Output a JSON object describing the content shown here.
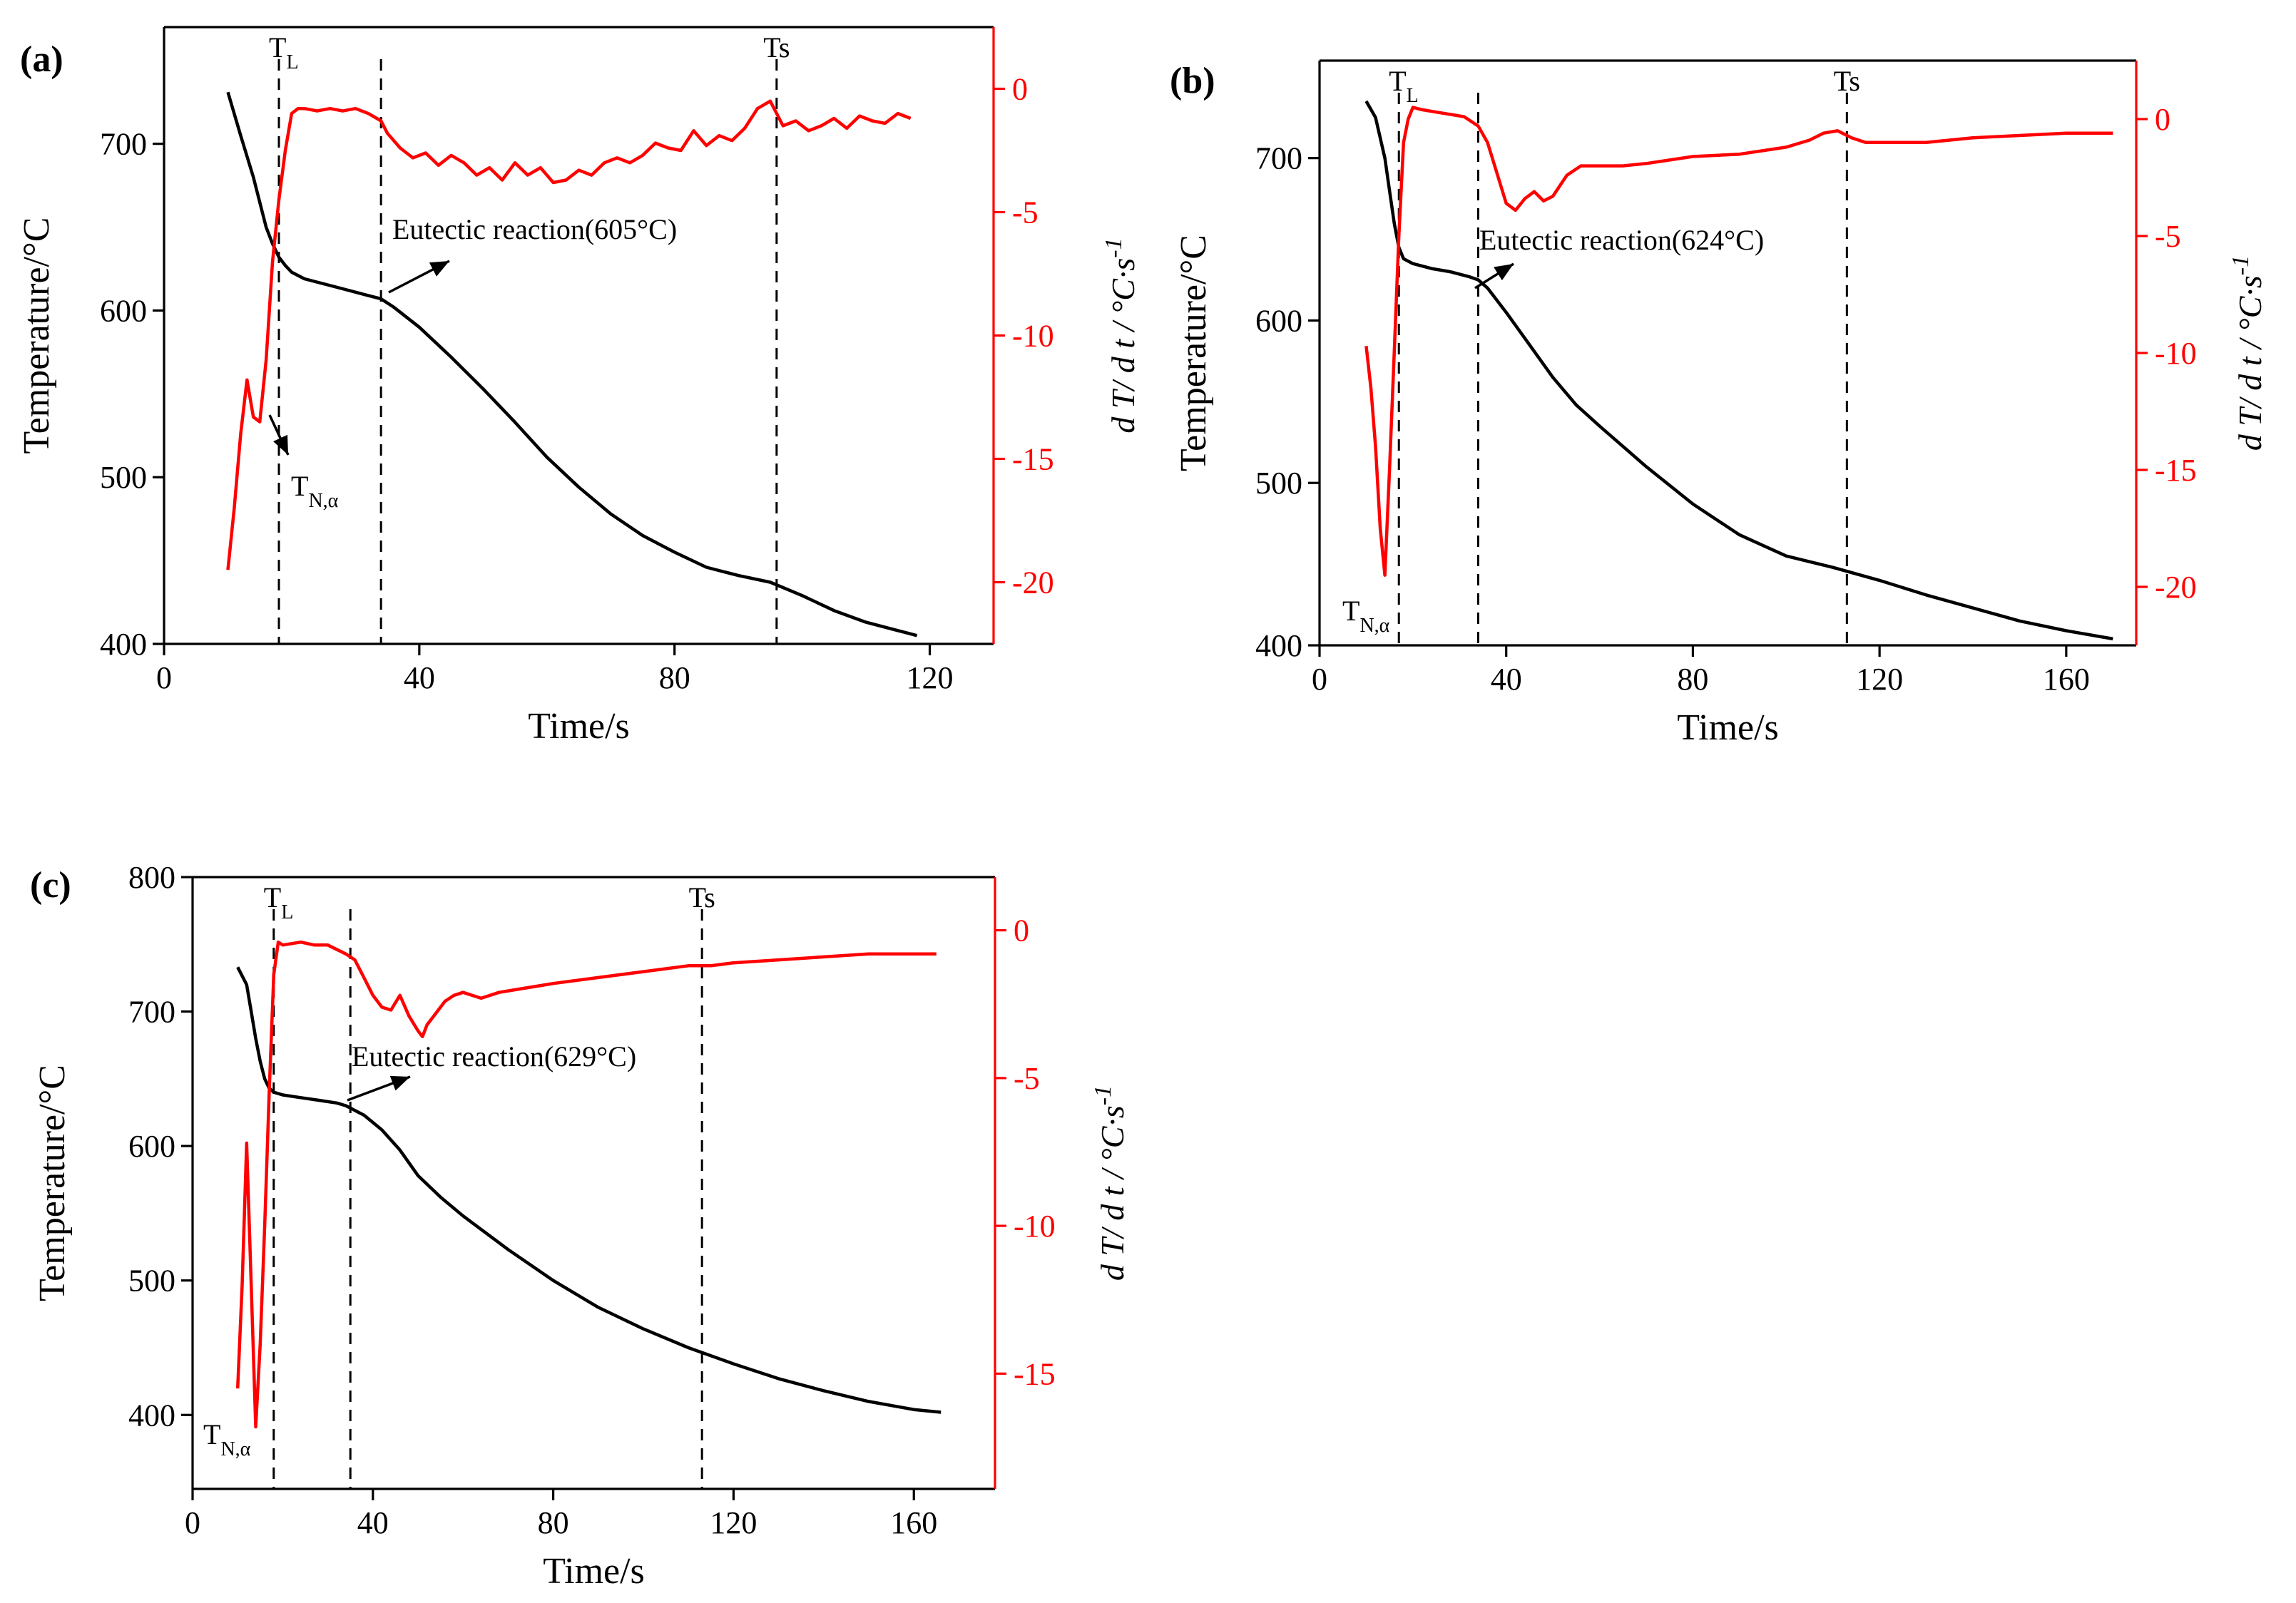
{
  "chart_data": [
    {
      "type": "line",
      "panel_label": "(a)",
      "xlabel": "Time/s",
      "ylabel_left": "Temperature/°C",
      "ylabel_right": "d T/ d t / °C·s",
      "ylabel_right_superscript": "-1",
      "xlim": [
        0,
        130
      ],
      "xticks": [
        0,
        40,
        80,
        120
      ],
      "ylim_left": [
        400,
        770
      ],
      "yticks_left": [
        400,
        500,
        600,
        700
      ],
      "ylim_right": [
        -22.5,
        2.5
      ],
      "yticks_right": [
        0,
        -5,
        -10,
        -15,
        -20
      ],
      "markers": [
        {
          "name": "T",
          "sub": "L",
          "x": 18
        },
        {
          "name": "",
          "sub": "",
          "x": 34
        },
        {
          "name": "Ts",
          "sub": "",
          "x": 96
        }
      ],
      "nucleation_label": {
        "name": "T",
        "sub": "N,α"
      },
      "eutectic_label": "Eutectic reaction(605°C)",
      "series": [
        {
          "name": "Temperature",
          "axis": "left",
          "color": "#000000",
          "x": [
            10,
            12,
            14,
            16,
            17,
            18,
            19,
            20,
            22,
            25,
            28,
            31,
            34,
            36,
            40,
            45,
            50,
            55,
            60,
            65,
            70,
            75,
            80,
            85,
            90,
            95,
            100,
            105,
            110,
            115,
            118
          ],
          "y": [
            731,
            705,
            680,
            650,
            640,
            632,
            627,
            623,
            619,
            616,
            613,
            610,
            607,
            602,
            590,
            572,
            553,
            533,
            512,
            494,
            478,
            465,
            455,
            446,
            441,
            437,
            429,
            420,
            413,
            408,
            405
          ]
        },
        {
          "name": "dT/dt",
          "axis": "right",
          "color": "#ff0000",
          "x": [
            10,
            11,
            12,
            13,
            14,
            15,
            16,
            17,
            18,
            19,
            20,
            21,
            22,
            24,
            26,
            28,
            30,
            32,
            34,
            35,
            37,
            39,
            41,
            43,
            45,
            47,
            49,
            51,
            53,
            55,
            57,
            59,
            61,
            63,
            65,
            67,
            69,
            71,
            73,
            75,
            77,
            79,
            81,
            83,
            85,
            87,
            89,
            91,
            93,
            95,
            97,
            99,
            101,
            103,
            105,
            107,
            109,
            111,
            113,
            115,
            117
          ],
          "y": [
            -19.5,
            -17,
            -14,
            -11.8,
            -13.3,
            -13.5,
            -11,
            -7,
            -4.5,
            -2.5,
            -1,
            -0.8,
            -0.8,
            -0.9,
            -0.8,
            -0.9,
            -0.8,
            -1,
            -1.3,
            -1.8,
            -2.4,
            -2.8,
            -2.6,
            -3.1,
            -2.7,
            -3,
            -3.5,
            -3.2,
            -3.7,
            -3,
            -3.5,
            -3.2,
            -3.8,
            -3.7,
            -3.3,
            -3.5,
            -3,
            -2.8,
            -3,
            -2.7,
            -2.2,
            -2.4,
            -2.5,
            -1.7,
            -2.3,
            -1.9,
            -2.1,
            -1.6,
            -0.8,
            -0.5,
            -1.5,
            -1.3,
            -1.7,
            -1.5,
            -1.2,
            -1.6,
            -1.1,
            -1.3,
            -1.4,
            -1,
            -1.2
          ]
        }
      ]
    },
    {
      "type": "line",
      "panel_label": "(b)",
      "xlabel": "Time/s",
      "ylabel_left": "Temperature/°C",
      "ylabel_right": "d T/ d t / °C·s",
      "ylabel_right_superscript": "-1",
      "xlim": [
        0,
        175
      ],
      "xticks": [
        0,
        40,
        80,
        120,
        160
      ],
      "ylim_left": [
        400,
        760
      ],
      "yticks_left": [
        400,
        500,
        600,
        700
      ],
      "ylim_right": [
        -22.5,
        2.5
      ],
      "yticks_right": [
        0,
        -5,
        -10,
        -15,
        -20
      ],
      "markers": [
        {
          "name": "T",
          "sub": "L",
          "x": 17
        },
        {
          "name": "",
          "sub": "",
          "x": 34
        },
        {
          "name": "Ts",
          "sub": "",
          "x": 113
        }
      ],
      "nucleation_label": {
        "name": "T",
        "sub": "N,α"
      },
      "eutectic_label": "Eutectic reaction(624°C)",
      "series": [
        {
          "name": "Temperature",
          "axis": "left",
          "color": "#000000",
          "x": [
            10,
            12,
            14,
            15,
            16,
            17,
            18,
            20,
            24,
            28,
            32,
            34,
            36,
            40,
            45,
            50,
            55,
            60,
            70,
            80,
            90,
            100,
            110,
            120,
            130,
            140,
            150,
            160,
            170
          ],
          "y": [
            735,
            725,
            700,
            680,
            660,
            645,
            638,
            635,
            632,
            630,
            627,
            625,
            620,
            605,
            585,
            565,
            548,
            535,
            510,
            487,
            468,
            455,
            448,
            440,
            431,
            423,
            415,
            409,
            404
          ]
        },
        {
          "name": "dT/dt",
          "axis": "right",
          "color": "#ff0000",
          "x": [
            10,
            11,
            12,
            13,
            14,
            15,
            16,
            17,
            18,
            19,
            20,
            22,
            25,
            28,
            31,
            34,
            36,
            38,
            40,
            42,
            44,
            46,
            48,
            50,
            53,
            56,
            60,
            65,
            70,
            80,
            90,
            100,
            105,
            108,
            111,
            114,
            117,
            120,
            130,
            140,
            150,
            160,
            170
          ],
          "y": [
            -9.7,
            -11.5,
            -14,
            -17.5,
            -19.5,
            -15,
            -10,
            -5,
            -1,
            0,
            0.5,
            0.4,
            0.3,
            0.2,
            0.1,
            -0.3,
            -1,
            -2.3,
            -3.6,
            -3.9,
            -3.4,
            -3.1,
            -3.5,
            -3.3,
            -2.4,
            -2,
            -2,
            -2,
            -1.9,
            -1.6,
            -1.5,
            -1.2,
            -0.9,
            -0.6,
            -0.5,
            -0.8,
            -1,
            -1,
            -1,
            -0.8,
            -0.7,
            -0.6,
            -0.6
          ]
        }
      ]
    },
    {
      "type": "line",
      "panel_label": "(c)",
      "xlabel": "Time/s",
      "ylabel_left": "Temperature/°C",
      "ylabel_right": "d T/ d t / °C·s",
      "ylabel_right_superscript": "-1",
      "xlim": [
        0,
        178
      ],
      "xticks": [
        0,
        40,
        80,
        120,
        160
      ],
      "ylim_left": [
        345,
        800
      ],
      "yticks_left": [
        400,
        500,
        600,
        700,
        800
      ],
      "ylim_right": [
        -18.9,
        1.8
      ],
      "yticks_right": [
        0,
        -5,
        -10,
        -15
      ],
      "markers": [
        {
          "name": "T",
          "sub": "L",
          "x": 18
        },
        {
          "name": "",
          "sub": "",
          "x": 35
        },
        {
          "name": "Ts",
          "sub": "",
          "x": 113
        }
      ],
      "nucleation_label": {
        "name": "T",
        "sub": "N,α"
      },
      "eutectic_label": "Eutectic reaction(629°C)",
      "series": [
        {
          "name": "Temperature",
          "axis": "left",
          "color": "#000000",
          "x": [
            10,
            12,
            13,
            14,
            15,
            16,
            17,
            18,
            20,
            24,
            28,
            32,
            34,
            38,
            42,
            46,
            50,
            55,
            60,
            70,
            80,
            90,
            100,
            110,
            120,
            130,
            140,
            150,
            160,
            166
          ],
          "y": [
            733,
            720,
            700,
            680,
            663,
            650,
            643,
            640,
            638,
            636,
            634,
            632,
            630,
            623,
            612,
            597,
            578,
            562,
            548,
            523,
            500,
            480,
            464,
            450,
            438,
            427,
            418,
            410,
            404,
            402
          ]
        },
        {
          "name": "dT/dt",
          "axis": "right",
          "color": "#ff0000",
          "x": [
            10,
            11,
            12,
            13,
            14,
            15,
            16,
            17,
            18,
            19,
            20,
            24,
            27,
            30,
            34,
            36,
            38,
            40,
            42,
            44,
            46,
            48,
            50,
            51,
            52,
            54,
            56,
            58,
            60,
            64,
            68,
            72,
            76,
            80,
            90,
            100,
            105,
            110,
            115,
            120,
            130,
            140,
            150,
            160,
            165
          ],
          "y": [
            -15.5,
            -12,
            -7.2,
            -12,
            -16.8,
            -14,
            -10,
            -5.5,
            -1.5,
            -0.4,
            -0.5,
            -0.4,
            -0.5,
            -0.5,
            -0.8,
            -1,
            -1.6,
            -2.2,
            -2.6,
            -2.7,
            -2.2,
            -2.9,
            -3.4,
            -3.6,
            -3.2,
            -2.8,
            -2.4,
            -2.2,
            -2.1,
            -2.3,
            -2.1,
            -2.0,
            -1.9,
            -1.8,
            -1.6,
            -1.4,
            -1.3,
            -1.2,
            -1.2,
            -1.1,
            -1.0,
            -0.9,
            -0.8,
            -0.8,
            -0.8
          ]
        }
      ]
    }
  ]
}
